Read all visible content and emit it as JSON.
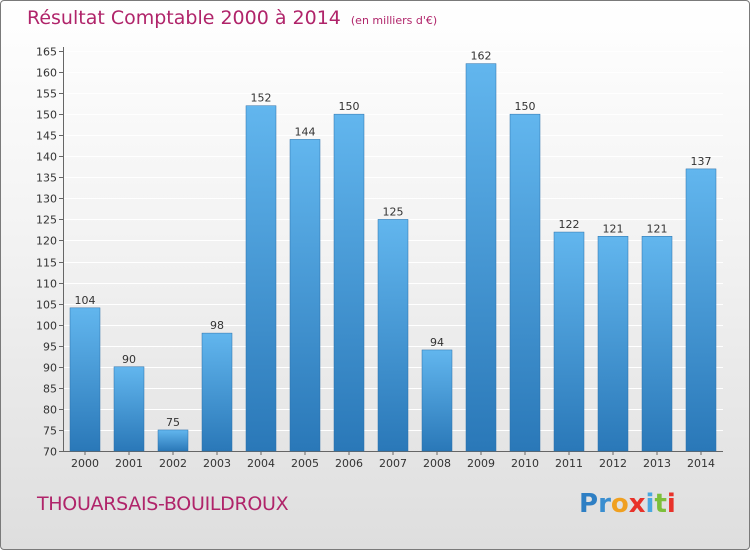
{
  "title": "Résultat Comptable 2000 à 2014",
  "unit": "(en milliers d'€)",
  "commune": "THOUARSAIS-BOUILDROUX",
  "logo": {
    "letters": [
      "P",
      "r",
      "o",
      "x",
      "i",
      "t",
      "i"
    ],
    "colors": [
      "#2e7fc4",
      "#3a8ed0",
      "#f0a020",
      "#e8322a",
      "#4aa8e0",
      "#7cbf3a",
      "#e8322a"
    ]
  },
  "colors": {
    "title": "#b0246a",
    "bar_light": "#5eb3ec",
    "bar_dark": "#2a78b8",
    "axis": "#555555"
  },
  "chart_data": {
    "type": "bar",
    "title": "Résultat Comptable 2000 à 2014",
    "xlabel": "",
    "ylabel": "",
    "categories": [
      "2000",
      "2001",
      "2002",
      "2003",
      "2004",
      "2005",
      "2006",
      "2007",
      "2008",
      "2009",
      "2010",
      "2011",
      "2012",
      "2013",
      "2014"
    ],
    "values": [
      104,
      90,
      75,
      98,
      152,
      144,
      150,
      125,
      94,
      162,
      150,
      122,
      121,
      121,
      137
    ],
    "ylim": [
      70,
      165
    ],
    "yticks": [
      70,
      75,
      80,
      85,
      90,
      95,
      100,
      105,
      110,
      115,
      120,
      125,
      130,
      135,
      140,
      145,
      150,
      155,
      160,
      165
    ],
    "grid": true
  }
}
